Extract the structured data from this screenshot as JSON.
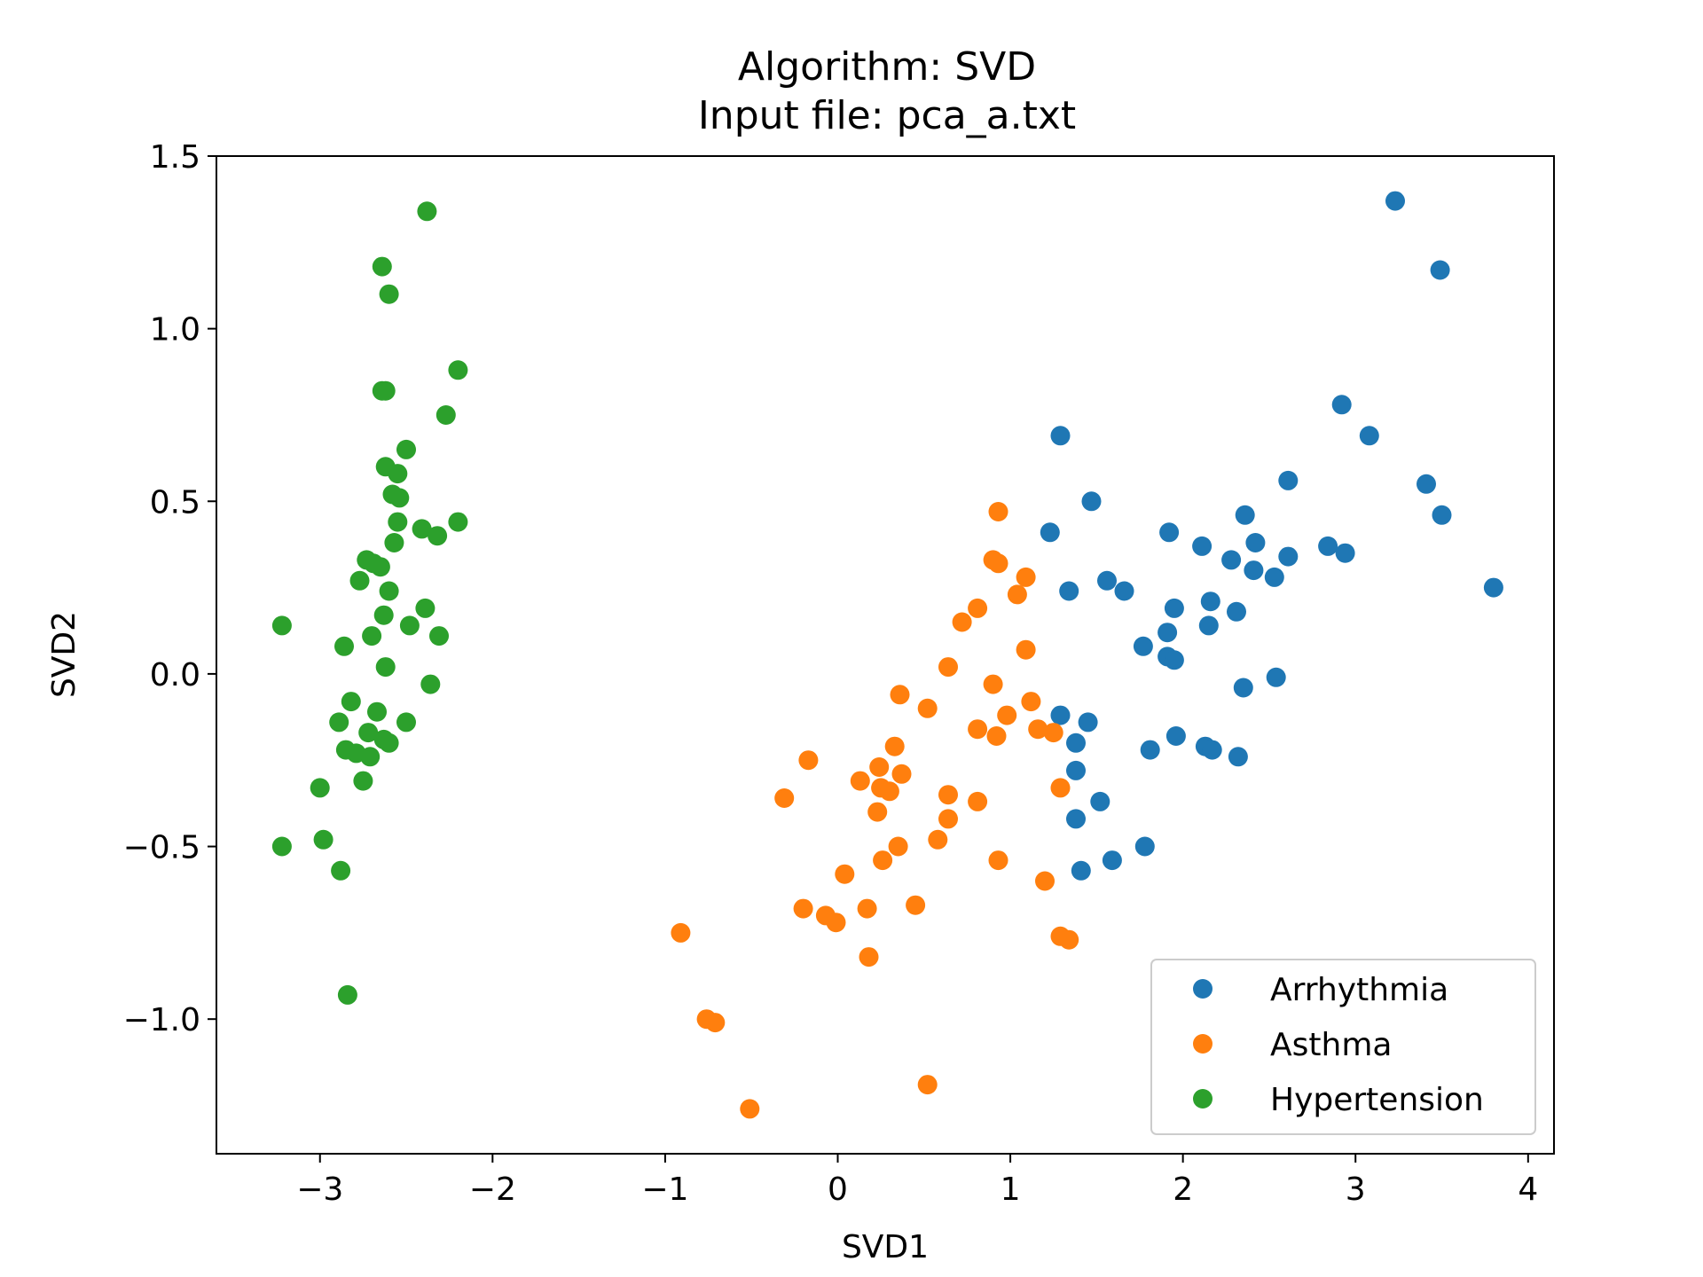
{
  "chart_data": {
    "type": "scatter",
    "title": "Algorithm: SVD",
    "subtitle": "Input file: pca_a.txt",
    "xlabel": "SVD1",
    "ylabel": "SVD2",
    "xlim": [
      -3.6,
      4.15
    ],
    "ylim": [
      -1.39,
      1.5
    ],
    "xticks": [
      -3,
      -2,
      -1,
      0,
      1,
      2,
      3,
      4
    ],
    "xtick_labels": [
      "−3",
      "−2",
      "−1",
      "0",
      "1",
      "2",
      "3",
      "4"
    ],
    "yticks": [
      -1.0,
      -0.5,
      0.0,
      0.5,
      1.0,
      1.5
    ],
    "ytick_labels": [
      "−1.0",
      "−0.5",
      "0.0",
      "0.5",
      "1.0",
      "1.5"
    ],
    "grid": false,
    "legend_position": "lower-right",
    "series": [
      {
        "name": "Arrhythmia",
        "color": "#1f77b4",
        "points": [
          [
            3.23,
            1.37
          ],
          [
            3.49,
            1.17
          ],
          [
            2.92,
            0.78
          ],
          [
            3.08,
            0.69
          ],
          [
            1.29,
            0.69
          ],
          [
            2.61,
            0.56
          ],
          [
            3.41,
            0.55
          ],
          [
            1.47,
            0.5
          ],
          [
            3.5,
            0.46
          ],
          [
            2.36,
            0.46
          ],
          [
            1.23,
            0.41
          ],
          [
            1.92,
            0.41
          ],
          [
            2.42,
            0.38
          ],
          [
            2.11,
            0.37
          ],
          [
            2.84,
            0.37
          ],
          [
            2.94,
            0.35
          ],
          [
            2.61,
            0.34
          ],
          [
            2.28,
            0.33
          ],
          [
            2.41,
            0.3
          ],
          [
            2.53,
            0.28
          ],
          [
            1.56,
            0.27
          ],
          [
            3.8,
            0.25
          ],
          [
            1.34,
            0.24
          ],
          [
            1.66,
            0.24
          ],
          [
            2.16,
            0.21
          ],
          [
            1.95,
            0.19
          ],
          [
            2.31,
            0.18
          ],
          [
            2.15,
            0.14
          ],
          [
            1.91,
            0.12
          ],
          [
            1.77,
            0.08
          ],
          [
            1.91,
            0.05
          ],
          [
            1.95,
            0.04
          ],
          [
            2.54,
            -0.01
          ],
          [
            2.35,
            -0.04
          ],
          [
            1.29,
            -0.12
          ],
          [
            1.45,
            -0.14
          ],
          [
            1.96,
            -0.18
          ],
          [
            1.38,
            -0.2
          ],
          [
            2.13,
            -0.21
          ],
          [
            2.17,
            -0.22
          ],
          [
            1.81,
            -0.22
          ],
          [
            2.32,
            -0.24
          ],
          [
            1.38,
            -0.28
          ],
          [
            1.52,
            -0.37
          ],
          [
            1.38,
            -0.42
          ],
          [
            1.78,
            -0.5
          ],
          [
            1.59,
            -0.54
          ],
          [
            1.41,
            -0.57
          ]
        ]
      },
      {
        "name": "Asthma",
        "color": "#ff7f0e",
        "points": [
          [
            0.93,
            0.47
          ],
          [
            0.9,
            0.33
          ],
          [
            0.93,
            0.32
          ],
          [
            1.09,
            0.28
          ],
          [
            1.04,
            0.23
          ],
          [
            0.81,
            0.19
          ],
          [
            0.72,
            0.15
          ],
          [
            1.09,
            0.07
          ],
          [
            0.64,
            0.02
          ],
          [
            0.9,
            -0.03
          ],
          [
            0.36,
            -0.06
          ],
          [
            1.12,
            -0.08
          ],
          [
            0.52,
            -0.1
          ],
          [
            0.98,
            -0.12
          ],
          [
            0.81,
            -0.16
          ],
          [
            1.16,
            -0.16
          ],
          [
            1.25,
            -0.17
          ],
          [
            0.92,
            -0.18
          ],
          [
            0.33,
            -0.21
          ],
          [
            -0.17,
            -0.25
          ],
          [
            0.24,
            -0.27
          ],
          [
            0.37,
            -0.29
          ],
          [
            0.13,
            -0.31
          ],
          [
            0.25,
            -0.33
          ],
          [
            1.29,
            -0.33
          ],
          [
            0.3,
            -0.34
          ],
          [
            0.64,
            -0.35
          ],
          [
            -0.31,
            -0.36
          ],
          [
            0.81,
            -0.37
          ],
          [
            0.23,
            -0.4
          ],
          [
            0.64,
            -0.42
          ],
          [
            0.58,
            -0.48
          ],
          [
            0.35,
            -0.5
          ],
          [
            0.93,
            -0.54
          ],
          [
            0.26,
            -0.54
          ],
          [
            0.04,
            -0.58
          ],
          [
            1.2,
            -0.6
          ],
          [
            0.45,
            -0.67
          ],
          [
            -0.2,
            -0.68
          ],
          [
            0.17,
            -0.68
          ],
          [
            -0.07,
            -0.7
          ],
          [
            -0.01,
            -0.72
          ],
          [
            1.29,
            -0.76
          ],
          [
            1.34,
            -0.77
          ],
          [
            -0.91,
            -0.75
          ],
          [
            0.18,
            -0.82
          ],
          [
            -0.76,
            -1.0
          ],
          [
            -0.71,
            -1.01
          ],
          [
            0.52,
            -1.19
          ],
          [
            -0.51,
            -1.26
          ]
        ]
      },
      {
        "name": "Hypertension",
        "color": "#2ca02c",
        "points": [
          [
            -2.38,
            1.34
          ],
          [
            -2.64,
            1.18
          ],
          [
            -2.6,
            1.1
          ],
          [
            -2.2,
            0.88
          ],
          [
            -2.64,
            0.82
          ],
          [
            -2.62,
            0.82
          ],
          [
            -2.27,
            0.75
          ],
          [
            -2.5,
            0.65
          ],
          [
            -2.62,
            0.6
          ],
          [
            -2.55,
            0.58
          ],
          [
            -2.58,
            0.52
          ],
          [
            -2.54,
            0.51
          ],
          [
            -2.2,
            0.44
          ],
          [
            -2.55,
            0.44
          ],
          [
            -2.41,
            0.42
          ],
          [
            -2.32,
            0.4
          ],
          [
            -2.57,
            0.38
          ],
          [
            -2.73,
            0.33
          ],
          [
            -2.69,
            0.32
          ],
          [
            -2.65,
            0.31
          ],
          [
            -2.77,
            0.27
          ],
          [
            -2.6,
            0.24
          ],
          [
            -2.39,
            0.19
          ],
          [
            -2.63,
            0.17
          ],
          [
            -2.48,
            0.14
          ],
          [
            -3.22,
            0.14
          ],
          [
            -2.31,
            0.11
          ],
          [
            -2.7,
            0.11
          ],
          [
            -2.86,
            0.08
          ],
          [
            -2.62,
            0.02
          ],
          [
            -2.36,
            -0.03
          ],
          [
            -2.82,
            -0.08
          ],
          [
            -2.67,
            -0.11
          ],
          [
            -2.89,
            -0.14
          ],
          [
            -2.5,
            -0.14
          ],
          [
            -2.72,
            -0.17
          ],
          [
            -2.63,
            -0.19
          ],
          [
            -2.6,
            -0.2
          ],
          [
            -2.85,
            -0.22
          ],
          [
            -2.79,
            -0.23
          ],
          [
            -2.71,
            -0.24
          ],
          [
            -2.75,
            -0.31
          ],
          [
            -3.0,
            -0.33
          ],
          [
            -2.98,
            -0.48
          ],
          [
            -3.22,
            -0.5
          ],
          [
            -2.88,
            -0.57
          ],
          [
            -2.84,
            -0.93
          ]
        ]
      }
    ]
  }
}
